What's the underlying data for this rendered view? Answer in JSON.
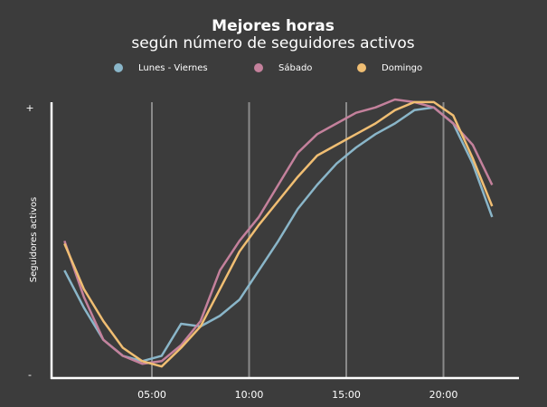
{
  "chart_data": {
    "type": "line",
    "title": "Mejores horas",
    "subtitle": "según número de seguidores activos",
    "y_label": "Seguidores activos",
    "x": [
      0.5,
      1.5,
      2.5,
      3.5,
      4.5,
      5.5,
      6.5,
      7.5,
      8.5,
      9.5,
      10.5,
      11.5,
      12.5,
      13.5,
      14.5,
      15.5,
      16.5,
      17.5,
      18.5,
      19.5,
      20.5,
      21.5,
      22.5
    ],
    "series": [
      {
        "name": "Lunes - Viernes",
        "color": "#8ab6c9",
        "values": [
          40,
          26,
          14,
          8,
          6,
          8,
          20,
          19,
          23,
          29,
          40,
          51,
          63,
          72,
          80,
          86,
          91,
          95,
          100,
          101,
          95,
          80,
          60
        ]
      },
      {
        "name": "Sábado",
        "color": "#c4819c",
        "values": [
          51,
          30,
          14,
          8,
          5,
          6,
          12,
          21,
          40,
          51,
          60,
          72,
          84,
          91,
          95,
          99,
          101,
          104,
          103,
          101,
          95,
          87,
          72
        ]
      },
      {
        "name": "Domingo",
        "color": "#f0be73",
        "values": [
          50,
          33,
          21,
          11,
          6,
          4,
          11,
          19,
          33,
          47,
          57,
          66,
          75,
          83,
          87,
          91,
          95,
          100,
          103,
          103,
          98,
          82,
          64
        ]
      }
    ],
    "xlim": [
      0,
      24
    ],
    "xticks": [
      {
        "value": 5,
        "label": "05:00"
      },
      {
        "value": 10,
        "label": "10:00"
      },
      {
        "value": 15,
        "label": "15:00"
      },
      {
        "value": 20,
        "label": "20:00"
      }
    ],
    "ylim": [
      0,
      105
    ],
    "yticks": [
      {
        "value": 0,
        "label": "-"
      },
      {
        "value": 100,
        "label": "+"
      }
    ],
    "grid": true
  }
}
